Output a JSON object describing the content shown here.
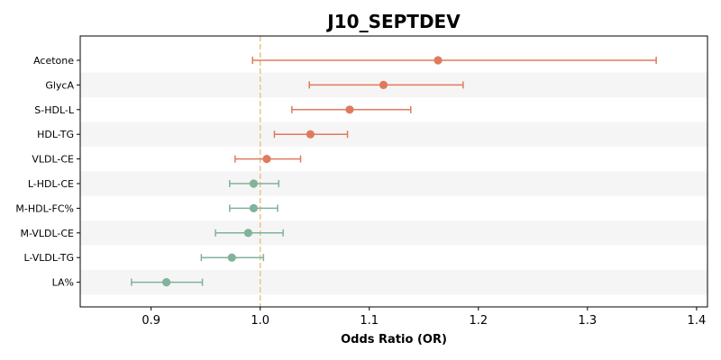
{
  "chart_data": {
    "type": "forest",
    "title": "J10_SEPTDEV",
    "xlabel": "Odds Ratio (OR)",
    "ylabel": "",
    "xlim": [
      0.835,
      1.41
    ],
    "xticks": [
      0.9,
      1.0,
      1.1,
      1.2,
      1.3,
      1.4
    ],
    "xtick_labels": [
      "0.9",
      "1.0",
      "1.1",
      "1.2",
      "1.3",
      "1.4"
    ],
    "reference_line": 1.0,
    "reference_color": "#e8c48a",
    "colors": {
      "increased": "#e07a5f",
      "decreased": "#81b29a",
      "band": "#f5f5f5"
    },
    "grid": false,
    "items": [
      {
        "label": "Acetone",
        "or": 1.163,
        "lower": 0.993,
        "upper": 1.363
      },
      {
        "label": "GlycA",
        "or": 1.113,
        "lower": 1.045,
        "upper": 1.186
      },
      {
        "label": "S-HDL-L",
        "or": 1.082,
        "lower": 1.029,
        "upper": 1.138
      },
      {
        "label": "HDL-TG",
        "or": 1.046,
        "lower": 1.013,
        "upper": 1.08
      },
      {
        "label": "VLDL-CE",
        "or": 1.006,
        "lower": 0.977,
        "upper": 1.037
      },
      {
        "label": "L-HDL-CE",
        "or": 0.994,
        "lower": 0.972,
        "upper": 1.017
      },
      {
        "label": "M-HDL-FC%",
        "or": 0.994,
        "lower": 0.972,
        "upper": 1.016
      },
      {
        "label": "M-VLDL-CE",
        "or": 0.989,
        "lower": 0.959,
        "upper": 1.021
      },
      {
        "label": "L-VLDL-TG",
        "or": 0.974,
        "lower": 0.946,
        "upper": 1.003
      },
      {
        "label": "LA%",
        "or": 0.914,
        "lower": 0.882,
        "upper": 0.947
      }
    ]
  }
}
